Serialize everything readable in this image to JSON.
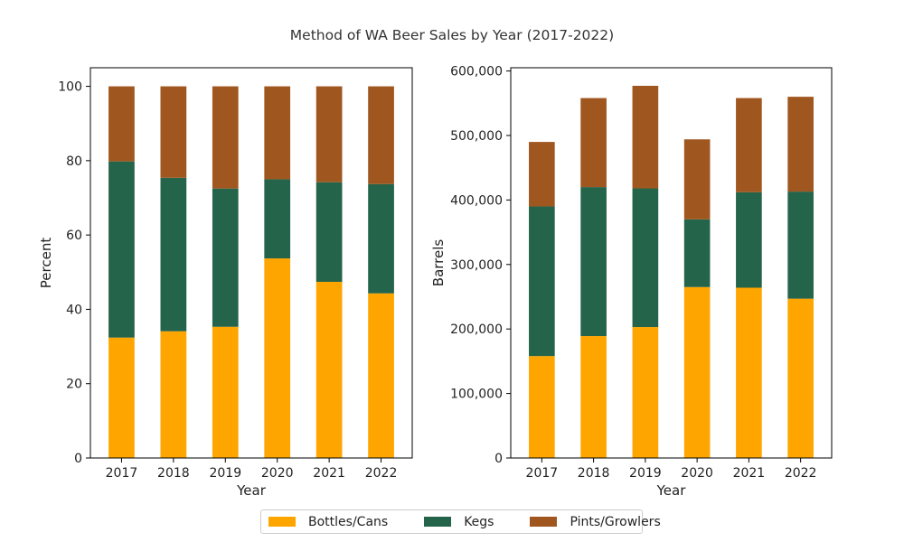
{
  "colors": {
    "Bottles/Cans": "#ffa500",
    "Kegs": "#24644a",
    "Pints/Growlers": "#a0561f"
  },
  "legend": {
    "items": [
      "Bottles/Cans",
      "Kegs",
      "Pints/Growlers"
    ]
  },
  "chart_data": [
    {
      "type": "bar",
      "stacked": true,
      "title": "Method of WA Beer Sales by Year (2017-2022)",
      "xlabel": "Year",
      "ylabel": "Percent",
      "categories": [
        "2017",
        "2018",
        "2019",
        "2020",
        "2021",
        "2022"
      ],
      "ylim": [
        0,
        105
      ],
      "yticks": [
        0,
        20,
        40,
        60,
        80,
        100
      ],
      "ytick_labels": [
        "0",
        "20",
        "40",
        "60",
        "80",
        "100"
      ],
      "series": [
        {
          "name": "Bottles/Cans",
          "values": [
            32.4,
            34.1,
            35.3,
            53.7,
            47.4,
            44.3
          ]
        },
        {
          "name": "Kegs",
          "values": [
            47.4,
            41.3,
            37.2,
            21.3,
            26.8,
            29.4
          ]
        },
        {
          "name": "Pints/Growlers",
          "values": [
            20.2,
            24.6,
            27.5,
            25.0,
            25.8,
            26.3
          ]
        }
      ]
    },
    {
      "type": "bar",
      "stacked": true,
      "xlabel": "Year",
      "ylabel": "Barrels",
      "categories": [
        "2017",
        "2018",
        "2019",
        "2020",
        "2021",
        "2022"
      ],
      "ylim": [
        0,
        605000
      ],
      "yticks": [
        0,
        100000,
        200000,
        300000,
        400000,
        500000,
        600000
      ],
      "ytick_labels": [
        "0",
        "100,000",
        "200,000",
        "300,000",
        "400,000",
        "500,000",
        "600,000"
      ],
      "series": [
        {
          "name": "Bottles/Cans",
          "values": [
            158000,
            189000,
            203000,
            265000,
            264000,
            247000
          ]
        },
        {
          "name": "Kegs",
          "values": [
            232000,
            231000,
            215000,
            105000,
            148000,
            166000
          ]
        },
        {
          "name": "Pints/Growlers",
          "values": [
            100000,
            138000,
            159000,
            124000,
            146000,
            147000
          ]
        }
      ]
    }
  ]
}
